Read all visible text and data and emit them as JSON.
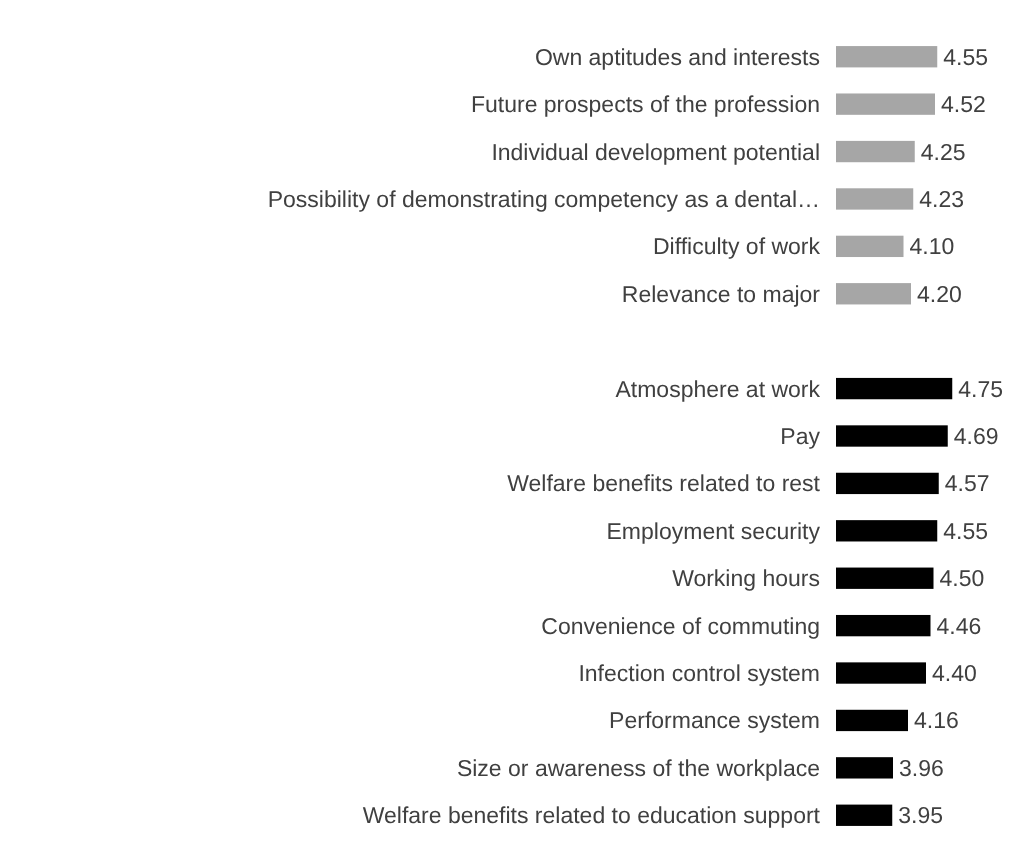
{
  "chart_data": {
    "type": "bar",
    "orientation": "horizontal",
    "data_labels": true,
    "xlim": [
      3.2,
      4.8
    ],
    "categories": [
      "Own aptitudes and interests",
      "Future prospects of the profession",
      "Individual development potential",
      "Possibility of demonstrating competency as a dental…",
      "Difficulty of work",
      "Relevance to major",
      null,
      "Atmosphere at work",
      "Pay",
      "Welfare benefits related to rest",
      "Employment security",
      "Working hours",
      "Convenience of commuting",
      "Infection control system",
      "Performance system",
      "Size or awareness of the workplace",
      "Welfare benefits related to education support"
    ],
    "values": [
      4.55,
      4.52,
      4.25,
      4.23,
      4.1,
      4.2,
      null,
      4.75,
      4.69,
      4.57,
      4.55,
      4.5,
      4.46,
      4.4,
      4.16,
      3.96,
      3.95
    ],
    "value_labels": [
      "4.55",
      "4.52",
      "4.25",
      "4.23",
      "4.10",
      "4.20",
      null,
      "4.75",
      "4.69",
      "4.57",
      "4.55",
      "4.50",
      "4.46",
      "4.40",
      "4.16",
      "3.96",
      "3.95"
    ],
    "colors": [
      "#a6a6a6",
      "#a6a6a6",
      "#a6a6a6",
      "#a6a6a6",
      "#a6a6a6",
      "#a6a6a6",
      null,
      "#000000",
      "#000000",
      "#000000",
      "#000000",
      "#000000",
      "#000000",
      "#000000",
      "#000000",
      "#000000",
      "#000000"
    ]
  }
}
